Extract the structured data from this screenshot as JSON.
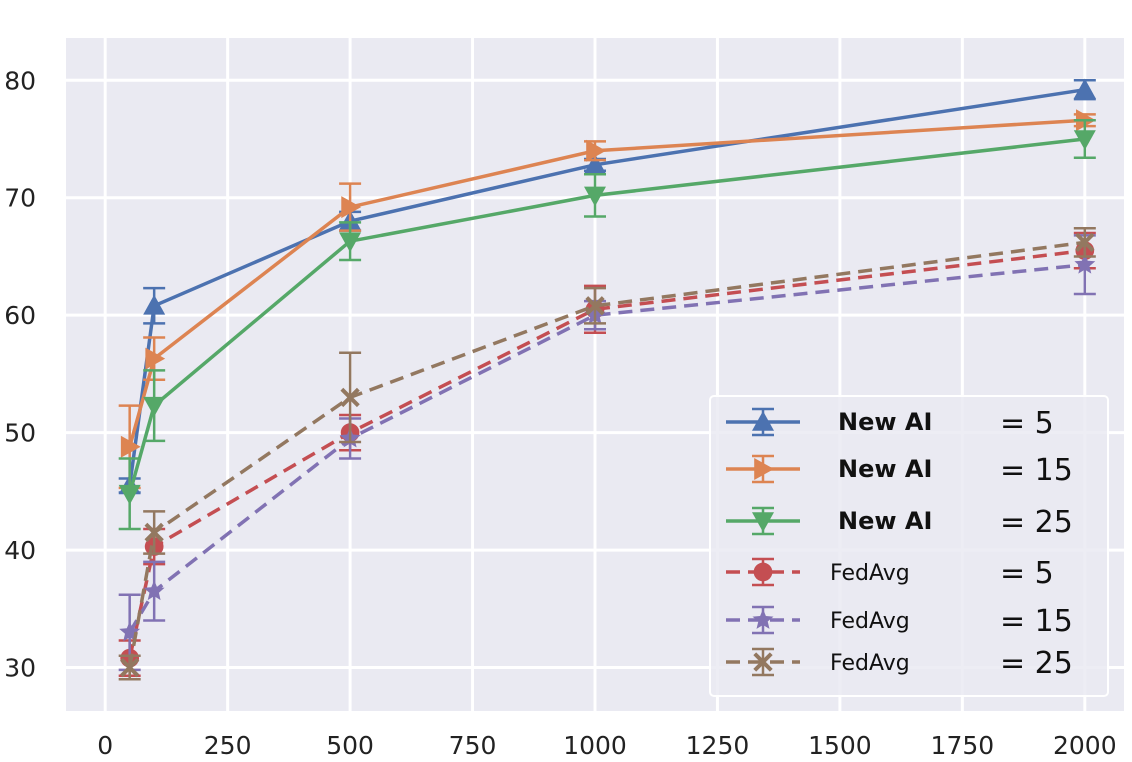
{
  "chart_data": {
    "type": "line",
    "title": "",
    "xlabel": "",
    "ylabel": "",
    "xlim": [
      -80,
      2080
    ],
    "ylim": [
      26.3,
      83.6
    ],
    "xticks": [
      0,
      250,
      500,
      750,
      1000,
      1250,
      1500,
      1750,
      2000
    ],
    "xtick_labels": [
      "0",
      "250",
      "500",
      "750",
      "1000",
      "1250",
      "1500",
      "1750",
      "2000"
    ],
    "yticks": [
      30,
      40,
      50,
      60,
      70,
      80
    ],
    "ytick_labels": [
      "30",
      "40",
      "50",
      "60",
      "70",
      "80"
    ],
    "grid": true,
    "legend_position": "bottom-right",
    "x": [
      50,
      100,
      500,
      1000,
      2000
    ],
    "series": [
      {
        "name": "New AI",
        "param": "= 5",
        "color": "#4c72b0",
        "linestyle": "solid",
        "marker": "triangle-up",
        "values": [
          45.5,
          60.8,
          68.0,
          72.8,
          79.2
        ],
        "errors": [
          0.6,
          1.5,
          0.8,
          0.5,
          0.8
        ]
      },
      {
        "name": "New AI",
        "param": "= 15",
        "color": "#dd8452",
        "linestyle": "solid",
        "marker": "triangle-right",
        "values": [
          48.8,
          56.3,
          69.2,
          74.0,
          76.6
        ],
        "errors": [
          3.5,
          1.8,
          2.0,
          0.8,
          0.5
        ]
      },
      {
        "name": "New AI",
        "param": "= 25",
        "color": "#55a868",
        "linestyle": "solid",
        "marker": "triangle-down",
        "values": [
          44.8,
          52.3,
          66.3,
          70.2,
          75.0
        ],
        "errors": [
          3.0,
          3.0,
          1.6,
          1.8,
          1.6
        ]
      },
      {
        "name": "FedAvg",
        "param": "= 5",
        "color": "#c44e52",
        "linestyle": "dashed",
        "marker": "circle",
        "values": [
          30.8,
          40.3,
          50.0,
          60.5,
          65.5
        ],
        "errors": [
          1.5,
          1.5,
          1.5,
          2.0,
          1.5
        ]
      },
      {
        "name": "FedAvg",
        "param": "= 15",
        "color": "#8172b3",
        "linestyle": "dashed",
        "marker": "star",
        "values": [
          33.0,
          36.5,
          49.5,
          60.0,
          64.3
        ],
        "errors": [
          3.2,
          2.5,
          1.7,
          1.2,
          2.5
        ]
      },
      {
        "name": "FedAvg",
        "param": "= 25",
        "color": "#937860",
        "linestyle": "dashed",
        "marker": "x",
        "values": [
          30.0,
          41.5,
          53.0,
          60.8,
          66.2
        ],
        "errors": [
          1.0,
          1.8,
          3.8,
          1.5,
          1.2
        ]
      }
    ]
  }
}
